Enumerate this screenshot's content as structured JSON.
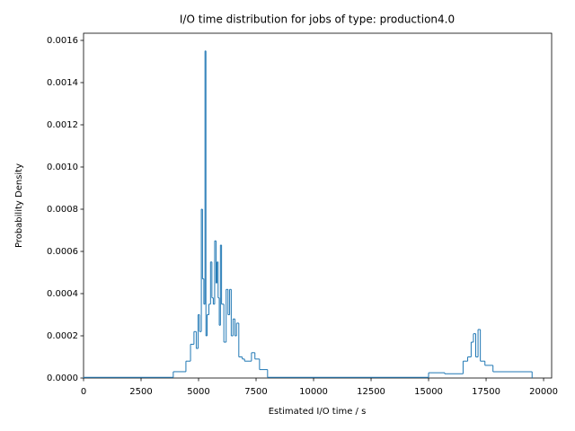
{
  "chart_data": {
    "type": "histogram",
    "title": "I/O time distribution for jobs of type: production4.0",
    "x_label": "Estimated I/O time / s",
    "y_label": "Probability Density",
    "color": "#1f77b4",
    "histtype": "step",
    "bins": [
      0,
      3900,
      4450,
      4650,
      4800,
      4900,
      4980,
      5040,
      5120,
      5170,
      5230,
      5280,
      5320,
      5370,
      5450,
      5520,
      5580,
      5640,
      5700,
      5760,
      5800,
      5850,
      5900,
      5950,
      6000,
      6100,
      6200,
      6280,
      6350,
      6420,
      6500,
      6580,
      6650,
      6750,
      6900,
      7000,
      7300,
      7450,
      7650,
      8000,
      15000,
      15700,
      16500,
      16700,
      16850,
      16950,
      17050,
      17150,
      17250,
      17450,
      17800,
      19500
    ],
    "values": [
      3e-06,
      3e-05,
      8e-05,
      0.00016,
      0.00022,
      0.00014,
      0.0003,
      0.00022,
      0.0008,
      0.00047,
      0.00035,
      0.00155,
      0.0002,
      0.0003,
      0.00035,
      0.00055,
      0.00038,
      0.00035,
      0.00065,
      0.00045,
      0.00055,
      0.00038,
      0.00025,
      0.00063,
      0.00035,
      0.00017,
      0.00042,
      0.0003,
      0.00042,
      0.0002,
      0.00028,
      0.0002,
      0.00026,
      0.0001,
      9e-05,
      8e-05,
      0.00012,
      9e-05,
      4e-05,
      3e-06,
      2.5e-05,
      2e-05,
      8e-05,
      0.0001,
      0.00017,
      0.00021,
      0.0001,
      0.00023,
      8e-05,
      6e-05,
      3e-05
    ],
    "xlim": [
      0,
      20350
    ],
    "ylim": [
      0,
      0.001634
    ],
    "xticks": [
      0,
      2500,
      5000,
      7500,
      10000,
      12500,
      15000,
      17500,
      20000
    ],
    "yticks": [
      {
        "value": 0,
        "label": "0.0000"
      },
      {
        "value": 0.0002,
        "label": "0.0002"
      },
      {
        "value": 0.0004,
        "label": "0.0004"
      },
      {
        "value": 0.0006,
        "label": "0.0006"
      },
      {
        "value": 0.0008,
        "label": "0.0008"
      },
      {
        "value": 0.001,
        "label": "0.0010"
      },
      {
        "value": 0.0012,
        "label": "0.0012"
      },
      {
        "value": 0.0014,
        "label": "0.0014"
      },
      {
        "value": 0.0016,
        "label": "0.0016"
      }
    ]
  }
}
